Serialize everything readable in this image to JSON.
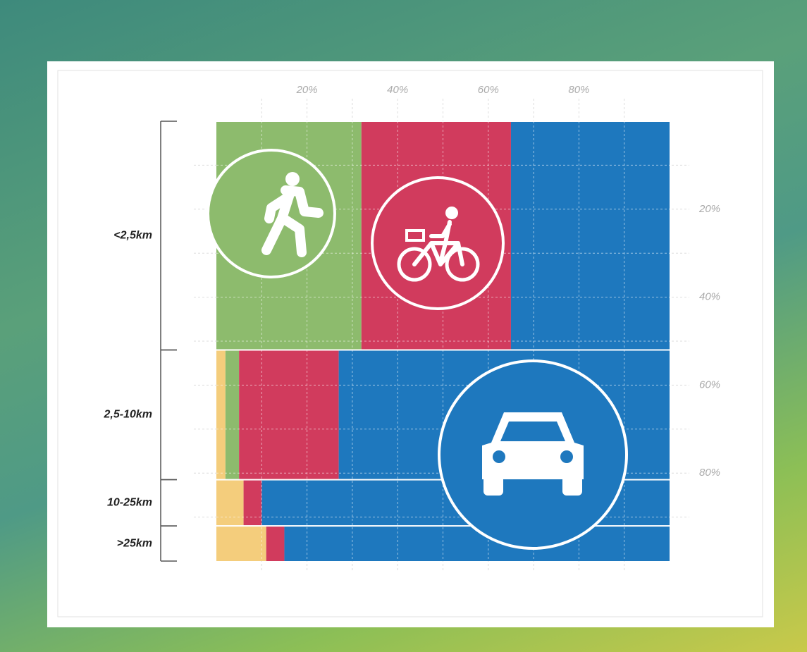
{
  "chart_data": {
    "type": "mosaic",
    "categories": [
      "<2,5km",
      "2,5-10km",
      "10-25km",
      ">25km"
    ],
    "row_shares": [
      52,
      29.5,
      10.5,
      8
    ],
    "series": [
      {
        "color": "#f4cd7c",
        "values": [
          0,
          2,
          6,
          11
        ]
      },
      {
        "color": "#8dbb6d",
        "values": [
          32,
          3,
          0,
          0
        ]
      },
      {
        "color": "#d13b5d",
        "values": [
          33,
          22,
          4,
          4
        ]
      },
      {
        "color": "#1e78be",
        "values": [
          35,
          73,
          90,
          85
        ]
      }
    ],
    "xlim": [
      0,
      100
    ],
    "ylim": [
      0,
      100
    ],
    "xticks": [
      {
        "value": 20,
        "label": "20%"
      },
      {
        "value": 40,
        "label": "40%"
      },
      {
        "value": 60,
        "label": "60%"
      },
      {
        "value": 80,
        "label": "80%"
      }
    ],
    "yticks": [
      {
        "value": 20,
        "label": "20%"
      },
      {
        "value": 40,
        "label": "40%"
      },
      {
        "value": 60,
        "label": "60%"
      },
      {
        "value": 80,
        "label": "80%"
      }
    ],
    "gridlines": [
      10,
      20,
      30,
      40,
      50,
      60,
      70,
      80,
      90
    ],
    "grid": true
  }
}
